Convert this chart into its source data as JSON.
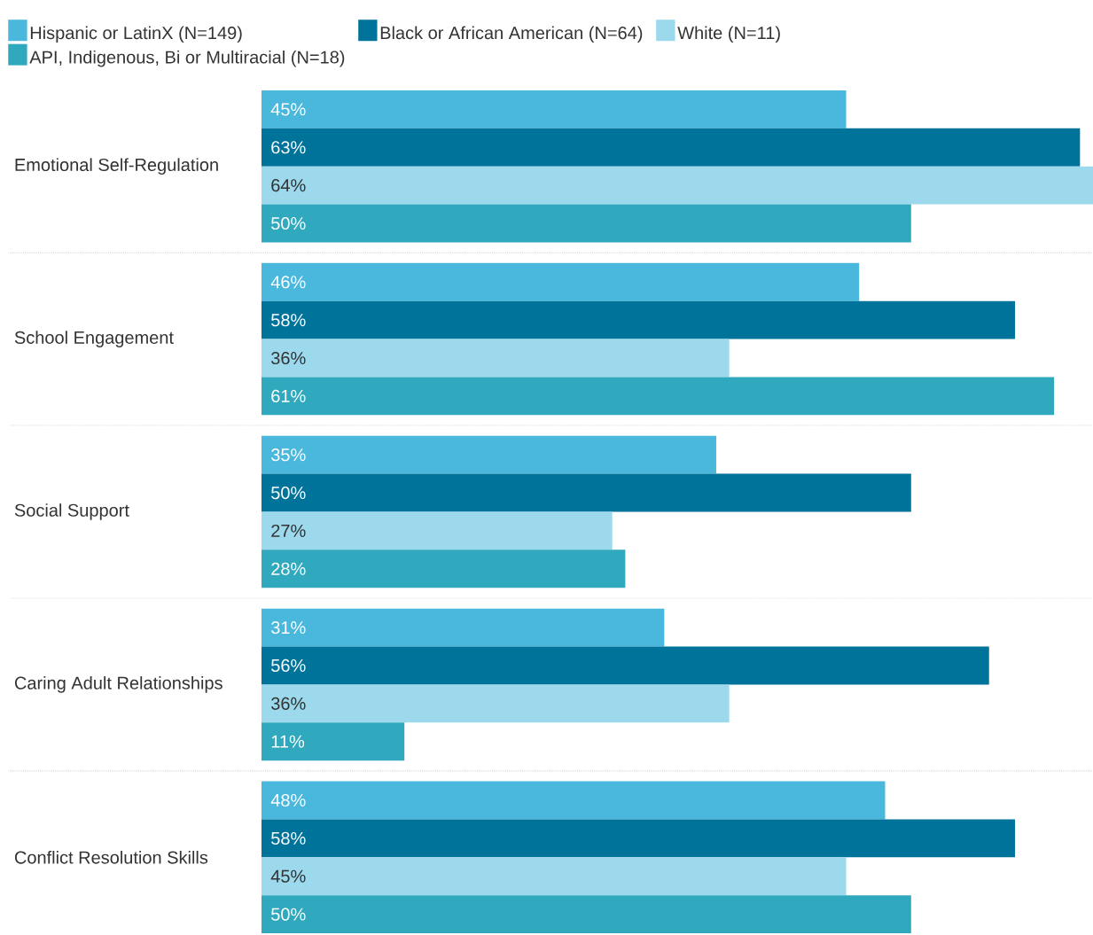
{
  "chart_data": {
    "type": "bar",
    "orientation": "horizontal",
    "legend": "top",
    "categories": [
      "Emotional Self-Regulation",
      "School Engagement",
      "Social Support",
      "Caring Adult Relationships",
      "Conflict Resolution Skills"
    ],
    "xlim": [
      0,
      64
    ],
    "series": [
      {
        "name": "Hispanic or LatinX (N=149)",
        "color": "#4ab7dc",
        "values": [
          45,
          46,
          35,
          31,
          48
        ],
        "value_labels": [
          "45%",
          "46%",
          "35%",
          "31%",
          "48%"
        ]
      },
      {
        "name": "Black or African American (N=64)",
        "color": "#00739a",
        "values": [
          63,
          58,
          50,
          56,
          58
        ],
        "value_labels": [
          "63%",
          "58%",
          "50%",
          "56%",
          "58%"
        ]
      },
      {
        "name": "White (N=11)",
        "color": "#9cd9ec",
        "values": [
          64,
          36,
          27,
          36,
          45
        ],
        "value_labels": [
          "64%",
          "36%",
          "27%",
          "36%",
          "45%"
        ]
      },
      {
        "name": "API, Indigenous, Bi or Multiracial (N=18)",
        "color": "#30a8bd",
        "values": [
          50,
          61,
          28,
          11,
          50
        ],
        "value_labels": [
          "50%",
          "61%",
          "28%",
          "11%",
          "50%"
        ]
      }
    ]
  }
}
